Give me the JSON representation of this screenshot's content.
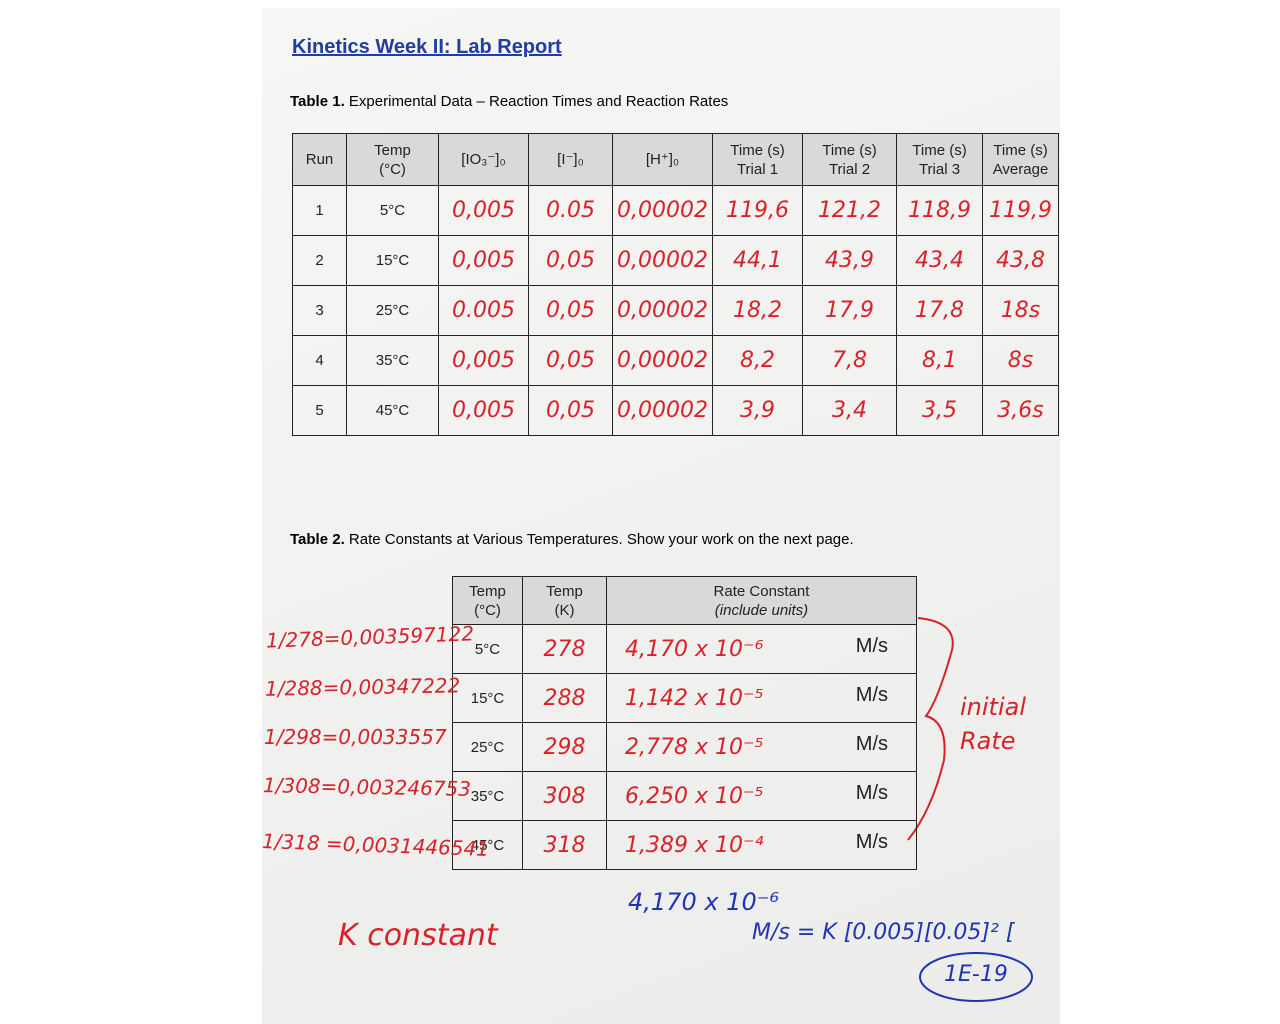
{
  "header": {
    "title": "Kinetics Week II: Lab Report"
  },
  "table1": {
    "caption_label": "Table 1.",
    "caption": "Experimental Data – Reaction Times and Reaction Rates",
    "headers": [
      [
        "Run"
      ],
      [
        "Temp",
        "(°C)"
      ],
      [
        "[IO₃⁻]₀"
      ],
      [
        "[I⁻]₀"
      ],
      [
        "[H⁺]₀"
      ],
      [
        "Time (s)",
        "Trial 1"
      ],
      [
        "Time (s)",
        "Trial 2"
      ],
      [
        "Time (s)",
        "Trial 3"
      ],
      [
        "Time (s)",
        "Average"
      ]
    ],
    "rows": [
      [
        "1",
        "5°C",
        "0,005",
        "0.05",
        "0,00002",
        "119,6",
        "121,2",
        "118,9",
        "119,9"
      ],
      [
        "2",
        "15°C",
        "0,005",
        "0,05",
        "0,00002",
        "44,1",
        "43,9",
        "43,4",
        "43,8"
      ],
      [
        "3",
        "25°C",
        "0.005",
        "0,05",
        "0,00002",
        "18,2",
        "17,9",
        "17,8",
        "18s"
      ],
      [
        "4",
        "35°C",
        "0,005",
        "0,05",
        "0,00002",
        "8,2",
        "7,8",
        "8,1",
        "8s"
      ],
      [
        "5",
        "45°C",
        "0,005",
        "0,05",
        "0,00002",
        "3,9",
        "3,4",
        "3,5",
        "3,6s"
      ]
    ]
  },
  "table2": {
    "caption_label": "Table 2.",
    "caption": "Rate Constants at Various Temperatures. Show your work on the next page.",
    "headers": [
      [
        "Temp",
        "(°C)"
      ],
      [
        "Temp",
        "(K)"
      ],
      [
        "Rate Constant",
        "(include units)"
      ]
    ],
    "rows": [
      [
        "5°C",
        "278",
        "4,170 x 10⁻⁶",
        "M/s"
      ],
      [
        "15°C",
        "288",
        "1,142 x 10⁻⁵",
        "M/s"
      ],
      [
        "25°C",
        "298",
        "2,778 x 10⁻⁵",
        "M/s"
      ],
      [
        "35°C",
        "308",
        "6,250 x 10⁻⁵",
        "M/s"
      ],
      [
        "45°C",
        "318",
        "1,389 x 10⁻⁴",
        "M/s"
      ]
    ]
  },
  "notes": {
    "inverse_temps": [
      "1/278=0,003597122",
      "1/288=0,00347222",
      "1/298=0,0033557",
      "1/308=0,003246753",
      "1/318 =0,0031446541"
    ],
    "brace_label": [
      "initial",
      "Rate"
    ],
    "k_label": "K constant",
    "work_line1": "4,170 x 10⁻⁶",
    "work_line2": "M/s = K [0.005][0.05]² [",
    "answer": "1E-19"
  }
}
